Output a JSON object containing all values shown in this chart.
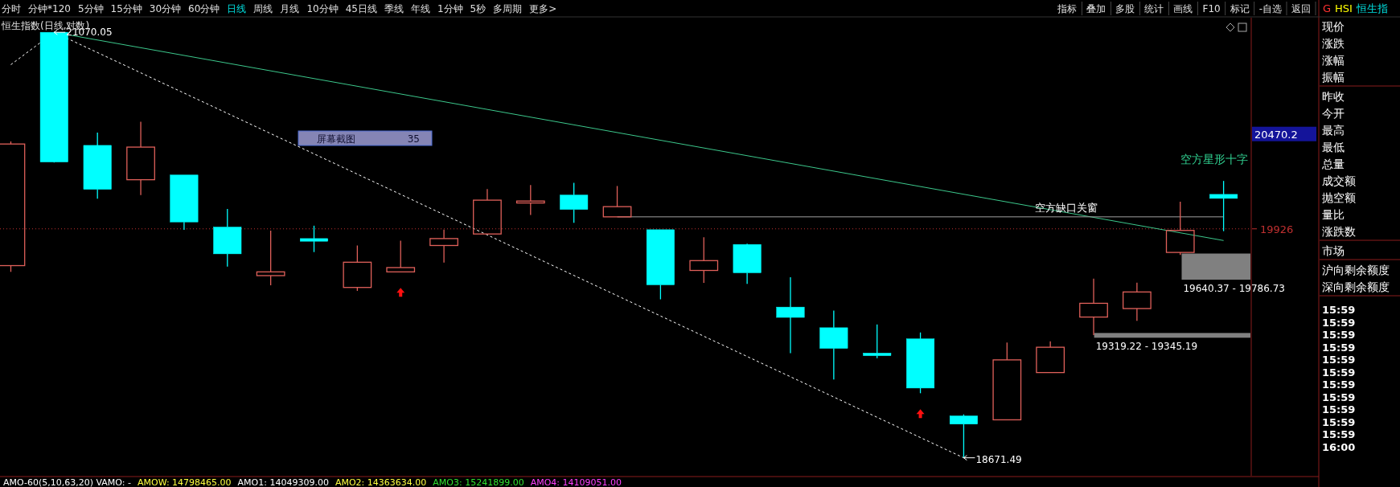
{
  "chart_data": {
    "type": "candlestick",
    "title": "恒生指数(日线,对数)",
    "categories": [
      null,
      null,
      null,
      null,
      null,
      null,
      null,
      null,
      null,
      null,
      null,
      null,
      null,
      null,
      null,
      null,
      null,
      null,
      null,
      null,
      null,
      null,
      null,
      null,
      null,
      null,
      null,
      null,
      null
    ],
    "ohlc": [
      [
        19719,
        20427,
        19684,
        20412
      ],
      [
        21070.05,
        21070.05,
        20305,
        20308
      ],
      [
        20404,
        20478,
        20097,
        20151
      ],
      [
        20206,
        20542,
        20118,
        20394
      ],
      [
        20233,
        20233,
        19920,
        19965
      ],
      [
        19936,
        20039,
        19714,
        19785
      ],
      [
        19663,
        19916,
        19609,
        19684
      ],
      [
        19871,
        19944,
        19795,
        19856
      ],
      [
        19597,
        19832,
        19578,
        19738
      ],
      [
        19684,
        19859,
        19684,
        19708
      ],
      [
        19832,
        19921,
        19736,
        19871
      ],
      [
        19897,
        20153,
        19897,
        20089
      ],
      [
        20073,
        20175,
        20005,
        20084
      ],
      [
        20118,
        20188,
        19960,
        20036
      ],
      [
        19994,
        20170,
        19994,
        20052
      ],
      [
        19921,
        19921,
        19531,
        19612
      ],
      [
        19692,
        19878,
        19622,
        19747
      ],
      [
        19838,
        19842,
        19617,
        19679
      ],
      [
        19488,
        19654,
        19235,
        19431
      ],
      [
        19374,
        19469,
        19091,
        19261
      ],
      [
        19235,
        19392,
        19207,
        19221
      ],
      [
        19313,
        19348,
        19017,
        19045
      ],
      [
        18895,
        18903,
        18671.49,
        18851
      ],
      [
        18874,
        19293,
        18874,
        19198
      ],
      [
        19129,
        19299,
        19129,
        19267
      ],
      [
        19433,
        19646,
        19334,
        19509
      ],
      [
        19480,
        19624,
        19412,
        19572
      ],
      [
        19793,
        20080,
        19779,
        19917
      ],
      [
        20122,
        20199,
        19913,
        20099
      ]
    ],
    "colors": [
      "#e0605a",
      "#00ffff",
      "#00ffff",
      "#e0605a",
      "#00ffff",
      "#00ffff",
      "#e0605a",
      "#00ffff",
      "#e0605a",
      "#e0605a",
      "#e0605a",
      "#e0605a",
      "#e0605a",
      "#00ffff",
      "#e0605a",
      "#00ffff",
      "#e0605a",
      "#00ffff",
      "#00ffff",
      "#00ffff",
      "#00ffff",
      "#00ffff",
      "#00ffff",
      "#e0605a",
      "#e0605a",
      "#e0605a",
      "#e0605a",
      "#e0605a",
      "#00ffff"
    ],
    "series": [
      {
        "type": "line",
        "values": [
          20877,
          21070.05,
          null,
          null,
          null,
          null,
          null,
          null,
          null,
          null,
          null,
          null,
          null,
          null,
          null,
          null,
          null,
          null,
          null,
          null,
          null,
          null,
          18671.49,
          null,
          null,
          null,
          null,
          null,
          null
        ],
        "color": "#ffffff",
        "line_style": "dashed"
      },
      {
        "type": "line",
        "values": [
          null,
          21070.05,
          null,
          null,
          null,
          null,
          null,
          null,
          null,
          null,
          null,
          null,
          null,
          null,
          null,
          null,
          null,
          null,
          null,
          null,
          null,
          null,
          null,
          null,
          null,
          null,
          null,
          null,
          19860
        ],
        "color": "#3cc88c",
        "line_style": "solid"
      },
      {
        "type": "line",
        "name": "空方缺口关窗",
        "values": [
          null,
          null,
          null,
          null,
          null,
          null,
          null,
          null,
          null,
          null,
          null,
          null,
          null,
          null,
          19994,
          null,
          null,
          null,
          null,
          null,
          null,
          null,
          null,
          null,
          null,
          null,
          null,
          null,
          19994
        ],
        "color": "#a0a0a0",
        "line_style": "solid"
      }
    ],
    "log": true,
    "ylim": [
      18585,
      21148
    ],
    "yticks": [
      {
        "value": 20470.2,
        "label": "20470.2"
      },
      19926
    ],
    "tick_labels": "y",
    "ref_lines": [
      {
        "axis": "y",
        "value": 19926,
        "color": "#c03030",
        "line_style": "dotted"
      }
    ],
    "bands": [
      {
        "axis": "y",
        "from": 19640.37,
        "to": 19786.73,
        "label": "19640.37 - 19786.73",
        "color": "#808080"
      },
      {
        "axis": "y",
        "from": 19319.22,
        "to": 19345.19,
        "label": "19319.22 - 19345.19",
        "color": "#808080"
      }
    ],
    "annotations": [
      "分时",
      "分钟*120",
      "5分钟",
      "15分钟",
      "30分钟",
      "60分钟",
      "日线",
      "周线",
      "月线",
      "10分钟",
      "45日线",
      "季线",
      "年线",
      "1分钟",
      "5秒",
      "多周期",
      "更多>",
      "指标",
      "叠加",
      "多股",
      "统计",
      "画线",
      "F10",
      "标记",
      "-自选",
      "返回",
      "G",
      "HSI",
      "恒生指",
      "现价",
      "涨跌",
      "涨幅",
      "振幅",
      "昨收",
      "今开",
      "最高",
      "最低",
      "总量",
      "成交额",
      "抛空额",
      "量比",
      "涨跌数",
      "市场",
      "沪向剩余额度",
      "深向剩余额度",
      "15:59",
      "15:59",
      "15:59",
      "15:59",
      "15:59",
      "15:59",
      "15:59",
      "15:59",
      "15:59",
      "15:59",
      "15:59",
      "16:00",
      "AMO-60(5,10,63,20)  VAMO: -",
      "AMOW: 14798465.00",
      "AMO1: 14049309.00",
      "AMO2: 14363634.00",
      "AMO3: 15241899.00",
      "AMO4: 14109051.00",
      "屏幕截图",
      "35",
      "空方星形十字",
      "21070.05",
      "18671.49"
    ]
  }
}
